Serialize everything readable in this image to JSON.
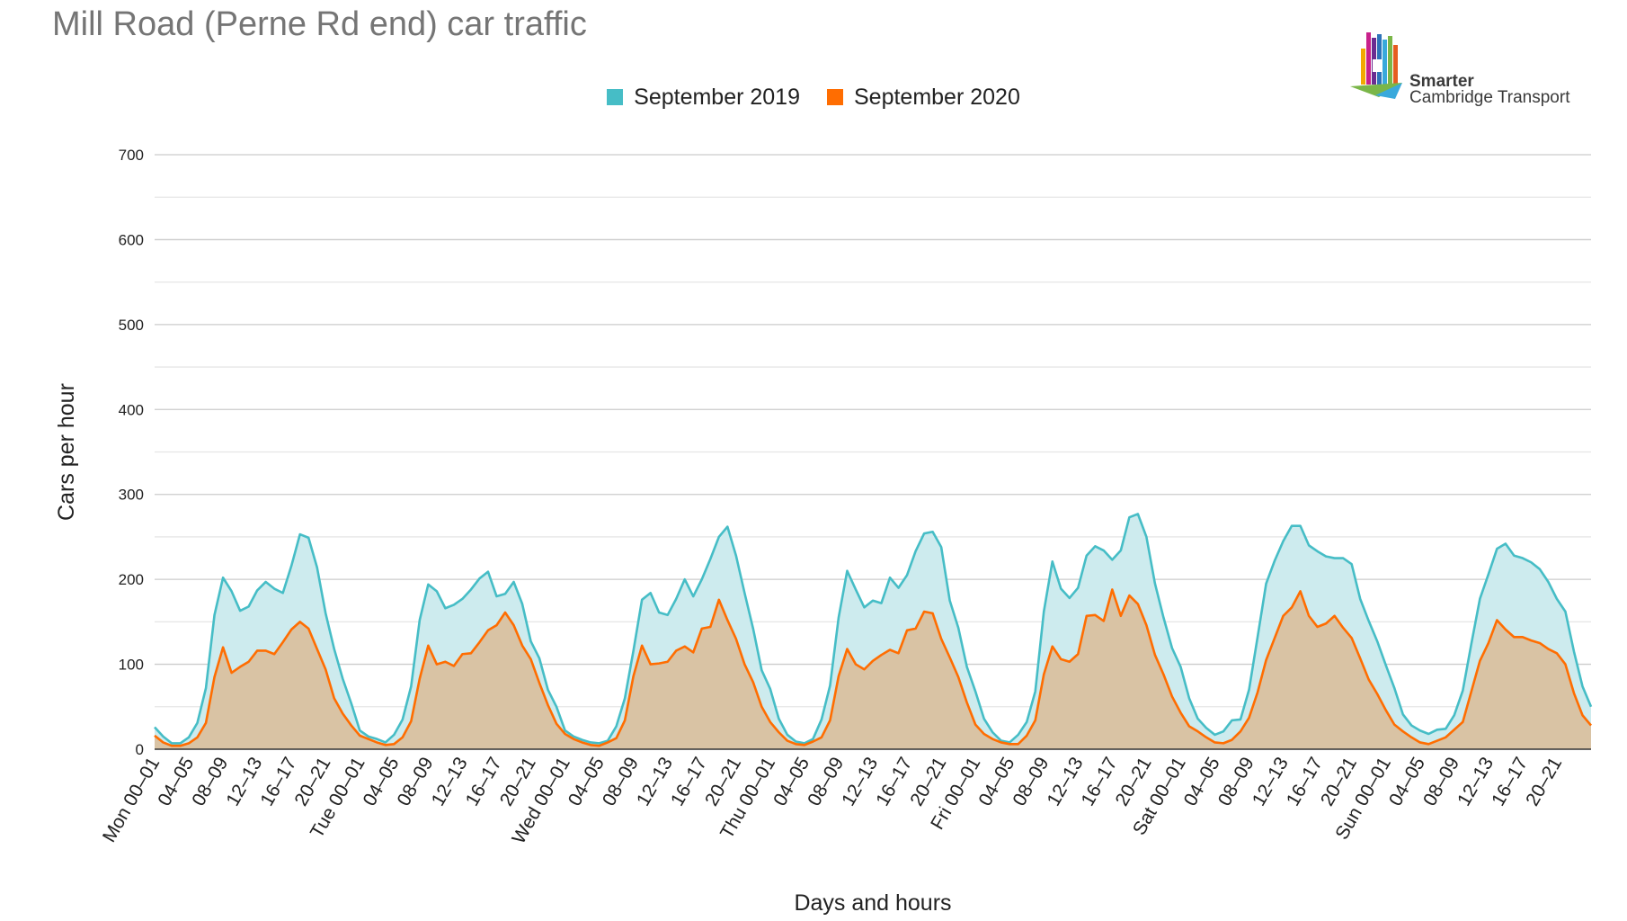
{
  "title": "Mill Road (Perne Rd end) car traffic",
  "logo": {
    "name": "smarter-cambridge-transport-logo",
    "line1": "Smarter",
    "line2": "Cambridge Transport"
  },
  "colors": {
    "series_2019": "#46BDC6",
    "series_2019_fill": "#CDEBEE",
    "series_2020": "#FF6D01",
    "series_2020_fill": "#D9C3A4",
    "grid": "#CCCCCC",
    "title": "#757575"
  },
  "chart_data": {
    "type": "area",
    "title": "Mill Road (Perne Rd end) car traffic",
    "xlabel": "Days and hours",
    "ylabel": "Cars per hour",
    "ylim": [
      0,
      700
    ],
    "yticks": [
      0,
      100,
      200,
      300,
      400,
      500,
      600,
      700
    ],
    "grid": true,
    "legend_position": "top",
    "x_tick_labels": [
      "Mon 00–01",
      "04–05",
      "08–09",
      "12–13",
      "16–17",
      "20–21",
      "Tue 00–01",
      "04–05",
      "08–09",
      "12–13",
      "16–17",
      "20–21",
      "Wed 00–01",
      "04–05",
      "08–09",
      "12–13",
      "16–17",
      "20–21",
      "Thu 00–01",
      "04–05",
      "08–09",
      "12–13",
      "16–17",
      "20–21",
      "Fri 00–01",
      "04–05",
      "08–09",
      "12–13",
      "16–17",
      "20–21",
      "Sat 00–01",
      "04–05",
      "08–09",
      "12–13",
      "16–17",
      "20–21",
      "Sun 00–01",
      "04–05",
      "08–09",
      "12–13",
      "16–17",
      "20–21"
    ],
    "x_tick_every": 4,
    "series": [
      {
        "name": "September 2019",
        "values": [
          26,
          15,
          7,
          7,
          14,
          31,
          72,
          158,
          202,
          186,
          163,
          168,
          187,
          197,
          189,
          184,
          216,
          253,
          249,
          214,
          160,
          118,
          83,
          54,
          22,
          15,
          12,
          8,
          17,
          35,
          74,
          152,
          194,
          186,
          166,
          170,
          177,
          188,
          201,
          209,
          180,
          183,
          197,
          171,
          127,
          107,
          70,
          50,
          22,
          15,
          11,
          8,
          7,
          10,
          27,
          60,
          116,
          176,
          184,
          161,
          158,
          177,
          200,
          180,
          200,
          224,
          250,
          262,
          228,
          184,
          142,
          93,
          71,
          36,
          17,
          9,
          7,
          12,
          35,
          75,
          155,
          210,
          188,
          167,
          175,
          172,
          202,
          190,
          205,
          233,
          254,
          256,
          238,
          175,
          143,
          97,
          68,
          36,
          20,
          10,
          8,
          17,
          32,
          68,
          162,
          221,
          189,
          178,
          190,
          228,
          239,
          234,
          223,
          234,
          273,
          277,
          250,
          195,
          155,
          119,
          97,
          60,
          36,
          25,
          17,
          21,
          34,
          35,
          70,
          132,
          195,
          222,
          245,
          263,
          263,
          240,
          233,
          227,
          225,
          225,
          218,
          177,
          151,
          127,
          99,
          72,
          41,
          28,
          22,
          18,
          23,
          24,
          40,
          69,
          124,
          177,
          206,
          236,
          242,
          228,
          225,
          220,
          212,
          197,
          177,
          162,
          115,
          74,
          50
        ]
      },
      {
        "name": "September 2020",
        "values": [
          16,
          8,
          4,
          4,
          7,
          14,
          31,
          85,
          120,
          90,
          97,
          103,
          116,
          116,
          112,
          126,
          141,
          150,
          142,
          118,
          94,
          60,
          42,
          28,
          16,
          12,
          8,
          5,
          6,
          14,
          33,
          83,
          122,
          100,
          103,
          98,
          112,
          113,
          126,
          140,
          146,
          161,
          146,
          122,
          106,
          78,
          52,
          30,
          18,
          12,
          8,
          5,
          4,
          8,
          13,
          34,
          86,
          122,
          100,
          101,
          103,
          116,
          121,
          114,
          142,
          144,
          176,
          152,
          130,
          100,
          79,
          50,
          32,
          20,
          10,
          6,
          5,
          9,
          14,
          34,
          86,
          118,
          100,
          94,
          104,
          111,
          117,
          113,
          140,
          142,
          162,
          160,
          130,
          108,
          85,
          55,
          29,
          18,
          12,
          8,
          6,
          6,
          16,
          34,
          88,
          121,
          106,
          103,
          112,
          157,
          158,
          151,
          188,
          157,
          181,
          171,
          146,
          111,
          88,
          62,
          43,
          27,
          21,
          14,
          8,
          7,
          11,
          21,
          37,
          67,
          105,
          131,
          157,
          167,
          186,
          157,
          144,
          148,
          157,
          143,
          131,
          107,
          82,
          65,
          46,
          29,
          21,
          14,
          8,
          6,
          10,
          14,
          23,
          32,
          68,
          104,
          125,
          152,
          141,
          132,
          132,
          128,
          125,
          118,
          113,
          100,
          66,
          40,
          28
        ]
      }
    ]
  }
}
